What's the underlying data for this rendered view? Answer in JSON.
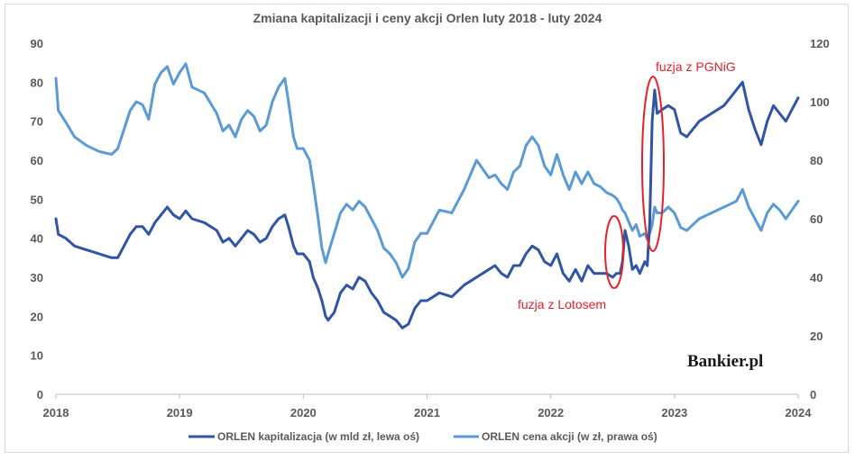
{
  "chart_data": {
    "type": "line",
    "title": "Zmiana kapitalizacji i ceny akcji Orlen luty 2018 - luty 2024",
    "x_ticks": [
      "2018",
      "2019",
      "2020",
      "2021",
      "2022",
      "2023",
      "2024"
    ],
    "xlim": [
      2018.0,
      2024.0
    ],
    "y_left": {
      "ticks": [
        0,
        10,
        20,
        30,
        40,
        50,
        60,
        70,
        80,
        90
      ],
      "lim": [
        0,
        90
      ]
    },
    "y_right": {
      "ticks": [
        0,
        20,
        40,
        60,
        80,
        100,
        120
      ],
      "lim": [
        0,
        120
      ]
    },
    "grid": false,
    "legend_position": "bottom",
    "series": [
      {
        "name": "ORLEN kapitalizacja (w mld zł, lewa oś)",
        "axis": "left",
        "color": "#2f55a4",
        "points": [
          [
            2018.0,
            45
          ],
          [
            2018.02,
            41
          ],
          [
            2018.08,
            40
          ],
          [
            2018.15,
            38
          ],
          [
            2018.25,
            37
          ],
          [
            2018.35,
            36
          ],
          [
            2018.45,
            35
          ],
          [
            2018.5,
            35
          ],
          [
            2018.6,
            41
          ],
          [
            2018.65,
            43
          ],
          [
            2018.7,
            43
          ],
          [
            2018.75,
            41
          ],
          [
            2018.8,
            44
          ],
          [
            2018.85,
            46
          ],
          [
            2018.9,
            48
          ],
          [
            2018.95,
            46
          ],
          [
            2019.0,
            45
          ],
          [
            2019.05,
            47
          ],
          [
            2019.1,
            45
          ],
          [
            2019.2,
            44
          ],
          [
            2019.3,
            42
          ],
          [
            2019.35,
            39
          ],
          [
            2019.4,
            40
          ],
          [
            2019.45,
            38
          ],
          [
            2019.5,
            40
          ],
          [
            2019.55,
            42
          ],
          [
            2019.6,
            41
          ],
          [
            2019.65,
            39
          ],
          [
            2019.7,
            40
          ],
          [
            2019.75,
            43
          ],
          [
            2019.8,
            45
          ],
          [
            2019.85,
            46
          ],
          [
            2019.88,
            43
          ],
          [
            2019.92,
            38
          ],
          [
            2019.95,
            36
          ],
          [
            2020.0,
            36
          ],
          [
            2020.05,
            34
          ],
          [
            2020.08,
            30
          ],
          [
            2020.12,
            27
          ],
          [
            2020.15,
            24
          ],
          [
            2020.18,
            20
          ],
          [
            2020.2,
            19
          ],
          [
            2020.25,
            21
          ],
          [
            2020.3,
            26
          ],
          [
            2020.35,
            28
          ],
          [
            2020.4,
            27
          ],
          [
            2020.45,
            30
          ],
          [
            2020.5,
            29
          ],
          [
            2020.55,
            26
          ],
          [
            2020.6,
            24
          ],
          [
            2020.65,
            21
          ],
          [
            2020.7,
            20
          ],
          [
            2020.75,
            19
          ],
          [
            2020.8,
            17
          ],
          [
            2020.85,
            18
          ],
          [
            2020.9,
            22
          ],
          [
            2020.95,
            24
          ],
          [
            2021.0,
            24
          ],
          [
            2021.1,
            26
          ],
          [
            2021.2,
            25
          ],
          [
            2021.3,
            28
          ],
          [
            2021.4,
            30
          ],
          [
            2021.5,
            32
          ],
          [
            2021.55,
            33
          ],
          [
            2021.6,
            31
          ],
          [
            2021.65,
            30
          ],
          [
            2021.7,
            33
          ],
          [
            2021.75,
            33
          ],
          [
            2021.8,
            36
          ],
          [
            2021.85,
            38
          ],
          [
            2021.9,
            37
          ],
          [
            2021.95,
            34
          ],
          [
            2022.0,
            33
          ],
          [
            2022.05,
            36
          ],
          [
            2022.1,
            31
          ],
          [
            2022.15,
            29
          ],
          [
            2022.2,
            32
          ],
          [
            2022.25,
            29
          ],
          [
            2022.3,
            33
          ],
          [
            2022.35,
            31
          ],
          [
            2022.4,
            31
          ],
          [
            2022.45,
            31
          ],
          [
            2022.5,
            30
          ],
          [
            2022.53,
            31
          ],
          [
            2022.56,
            31
          ],
          [
            2022.58,
            34
          ],
          [
            2022.6,
            42
          ],
          [
            2022.63,
            38
          ],
          [
            2022.66,
            32
          ],
          [
            2022.69,
            33
          ],
          [
            2022.72,
            31
          ],
          [
            2022.76,
            34
          ],
          [
            2022.78,
            33
          ],
          [
            2022.8,
            44
          ],
          [
            2022.82,
            70
          ],
          [
            2022.84,
            78
          ],
          [
            2022.86,
            72
          ],
          [
            2022.9,
            73
          ],
          [
            2022.95,
            74
          ],
          [
            2023.0,
            73
          ],
          [
            2023.05,
            67
          ],
          [
            2023.1,
            66
          ],
          [
            2023.2,
            70
          ],
          [
            2023.3,
            72
          ],
          [
            2023.4,
            74
          ],
          [
            2023.45,
            76
          ],
          [
            2023.5,
            78
          ],
          [
            2023.55,
            80
          ],
          [
            2023.6,
            73
          ],
          [
            2023.65,
            68
          ],
          [
            2023.7,
            64
          ],
          [
            2023.75,
            70
          ],
          [
            2023.8,
            74
          ],
          [
            2023.85,
            72
          ],
          [
            2023.9,
            70
          ],
          [
            2023.95,
            73
          ],
          [
            2024.0,
            76
          ]
        ]
      },
      {
        "name": "ORLEN cena akcji (w zł, prawa oś)",
        "axis": "right",
        "color": "#5b9bd5",
        "points": [
          [
            2018.0,
            108
          ],
          [
            2018.02,
            97
          ],
          [
            2018.08,
            93
          ],
          [
            2018.15,
            88
          ],
          [
            2018.25,
            85
          ],
          [
            2018.35,
            83
          ],
          [
            2018.45,
            82
          ],
          [
            2018.5,
            84
          ],
          [
            2018.6,
            97
          ],
          [
            2018.65,
            100
          ],
          [
            2018.7,
            99
          ],
          [
            2018.75,
            94
          ],
          [
            2018.8,
            106
          ],
          [
            2018.85,
            110
          ],
          [
            2018.9,
            112
          ],
          [
            2018.95,
            106
          ],
          [
            2019.0,
            110
          ],
          [
            2019.05,
            113
          ],
          [
            2019.1,
            105
          ],
          [
            2019.2,
            103
          ],
          [
            2019.3,
            96
          ],
          [
            2019.35,
            90
          ],
          [
            2019.4,
            92
          ],
          [
            2019.45,
            88
          ],
          [
            2019.5,
            94
          ],
          [
            2019.55,
            97
          ],
          [
            2019.6,
            95
          ],
          [
            2019.65,
            90
          ],
          [
            2019.7,
            92
          ],
          [
            2019.75,
            100
          ],
          [
            2019.8,
            105
          ],
          [
            2019.85,
            108
          ],
          [
            2019.88,
            100
          ],
          [
            2019.92,
            88
          ],
          [
            2019.95,
            84
          ],
          [
            2020.0,
            84
          ],
          [
            2020.05,
            80
          ],
          [
            2020.08,
            72
          ],
          [
            2020.12,
            60
          ],
          [
            2020.15,
            50
          ],
          [
            2020.18,
            45
          ],
          [
            2020.2,
            48
          ],
          [
            2020.25,
            55
          ],
          [
            2020.3,
            62
          ],
          [
            2020.35,
            65
          ],
          [
            2020.4,
            63
          ],
          [
            2020.45,
            66
          ],
          [
            2020.5,
            64
          ],
          [
            2020.55,
            60
          ],
          [
            2020.6,
            56
          ],
          [
            2020.65,
            50
          ],
          [
            2020.7,
            48
          ],
          [
            2020.75,
            45
          ],
          [
            2020.8,
            40
          ],
          [
            2020.85,
            43
          ],
          [
            2020.9,
            52
          ],
          [
            2020.95,
            55
          ],
          [
            2021.0,
            55
          ],
          [
            2021.1,
            63
          ],
          [
            2021.2,
            62
          ],
          [
            2021.3,
            70
          ],
          [
            2021.4,
            80
          ],
          [
            2021.5,
            74
          ],
          [
            2021.55,
            75
          ],
          [
            2021.6,
            72
          ],
          [
            2021.65,
            70
          ],
          [
            2021.7,
            76
          ],
          [
            2021.75,
            78
          ],
          [
            2021.8,
            85
          ],
          [
            2021.85,
            88
          ],
          [
            2021.9,
            85
          ],
          [
            2021.95,
            78
          ],
          [
            2022.0,
            75
          ],
          [
            2022.05,
            82
          ],
          [
            2022.1,
            75
          ],
          [
            2022.15,
            70
          ],
          [
            2022.2,
            76
          ],
          [
            2022.25,
            72
          ],
          [
            2022.3,
            76
          ],
          [
            2022.35,
            72
          ],
          [
            2022.4,
            71
          ],
          [
            2022.45,
            69
          ],
          [
            2022.5,
            68
          ],
          [
            2022.53,
            67
          ],
          [
            2022.56,
            65
          ],
          [
            2022.58,
            63
          ],
          [
            2022.6,
            62
          ],
          [
            2022.63,
            59
          ],
          [
            2022.66,
            56
          ],
          [
            2022.69,
            58
          ],
          [
            2022.72,
            54
          ],
          [
            2022.76,
            55
          ],
          [
            2022.78,
            53
          ],
          [
            2022.8,
            55
          ],
          [
            2022.82,
            58
          ],
          [
            2022.84,
            64
          ],
          [
            2022.86,
            62
          ],
          [
            2022.9,
            62
          ],
          [
            2022.95,
            64
          ],
          [
            2023.0,
            62
          ],
          [
            2023.05,
            57
          ],
          [
            2023.1,
            56
          ],
          [
            2023.2,
            60
          ],
          [
            2023.3,
            62
          ],
          [
            2023.4,
            64
          ],
          [
            2023.45,
            65
          ],
          [
            2023.5,
            66
          ],
          [
            2023.55,
            70
          ],
          [
            2023.6,
            64
          ],
          [
            2023.65,
            60
          ],
          [
            2023.7,
            56
          ],
          [
            2023.75,
            62
          ],
          [
            2023.8,
            65
          ],
          [
            2023.85,
            63
          ],
          [
            2023.9,
            60
          ],
          [
            2023.95,
            63
          ],
          [
            2024.0,
            66
          ]
        ]
      }
    ],
    "annotations": [
      {
        "text": "fuzja z PGNiG",
        "color": "#e8202a"
      },
      {
        "text": "fuzja z Lotosem",
        "color": "#e8202a"
      }
    ],
    "watermark": "Bankier.pl"
  }
}
